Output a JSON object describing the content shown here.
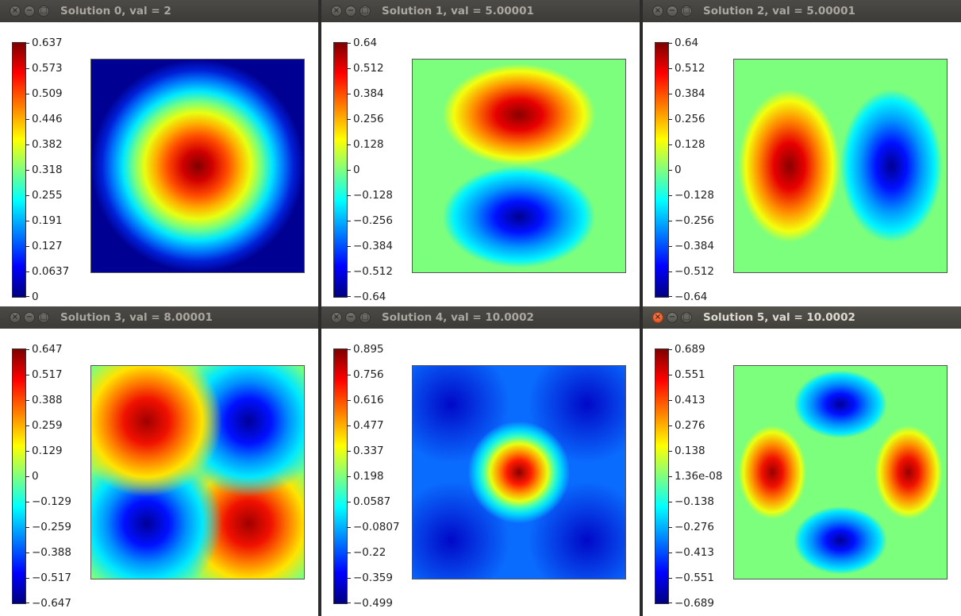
{
  "windows": [
    {
      "title": "Solution 0, val = 2",
      "active": false,
      "colorbar_labels": [
        "0.637",
        "0.573",
        "0.509",
        "0.446",
        "0.382",
        "0.318",
        "0.255",
        "0.191",
        "0.127",
        "0.0637",
        "0"
      ],
      "plot": "g0"
    },
    {
      "title": "Solution 1, val = 5.00001",
      "active": false,
      "colorbar_labels": [
        "0.64",
        "0.512",
        "0.384",
        "0.256",
        "0.128",
        "0",
        "−0.128",
        "−0.256",
        "−0.384",
        "−0.512",
        "−0.64"
      ],
      "plot": "g1"
    },
    {
      "title": "Solution 2, val = 5.00001",
      "active": false,
      "colorbar_labels": [
        "0.64",
        "0.512",
        "0.384",
        "0.256",
        "0.128",
        "0",
        "−0.128",
        "−0.256",
        "−0.384",
        "−0.512",
        "−0.64"
      ],
      "plot": "g2"
    },
    {
      "title": "Solution 3, val = 8.00001",
      "active": false,
      "colorbar_labels": [
        "0.647",
        "0.517",
        "0.388",
        "0.259",
        "0.129",
        "0",
        "−0.129",
        "−0.259",
        "−0.388",
        "−0.517",
        "−0.647"
      ],
      "plot": "g3"
    },
    {
      "title": "Solution 4, val = 10.0002",
      "active": false,
      "colorbar_labels": [
        "0.895",
        "0.756",
        "0.616",
        "0.477",
        "0.337",
        "0.198",
        "0.0587",
        "−0.0807",
        "−0.22",
        "−0.359",
        "−0.499"
      ],
      "plot": "g4"
    },
    {
      "title": "Solution 5, val = 10.0002",
      "active": true,
      "colorbar_labels": [
        "0.689",
        "0.551",
        "0.413",
        "0.276",
        "0.138",
        "1.36e-08",
        "−0.138",
        "−0.276",
        "−0.413",
        "−0.551",
        "−0.689"
      ],
      "plot": "g5"
    }
  ],
  "colormap": "jet",
  "window_buttons": {
    "close": "×",
    "minimize": "−",
    "maximize": "□"
  }
}
